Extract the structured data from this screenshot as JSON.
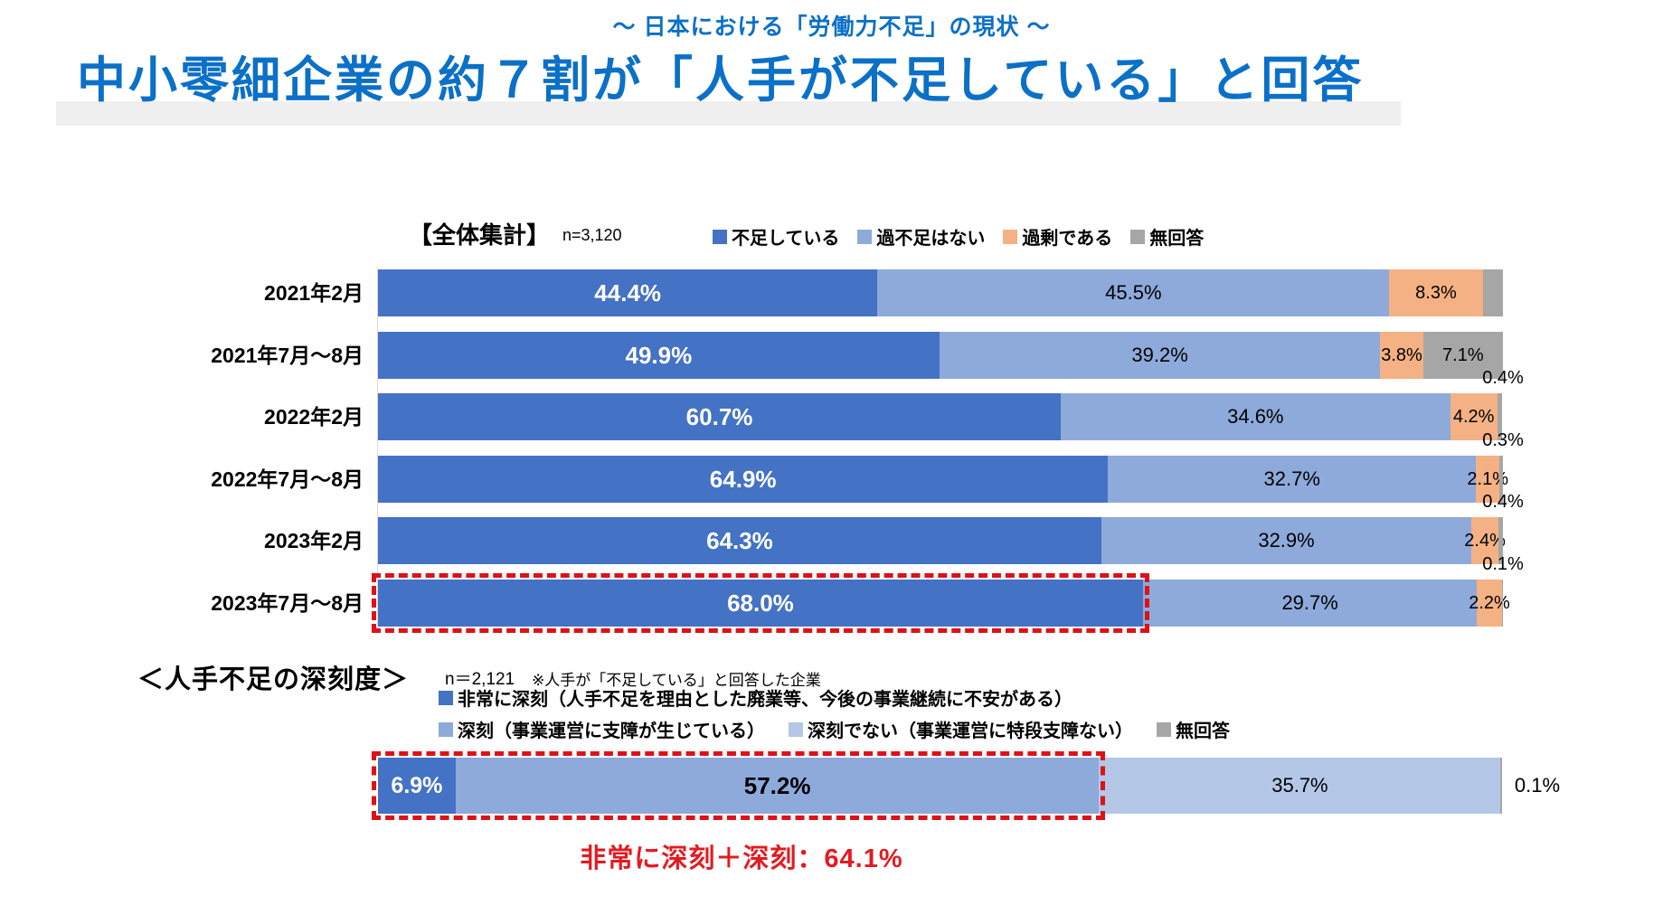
{
  "page": {
    "subtitle": "～ 日本における「労働力不足」の現状 ～",
    "title": "中小零細企業の約７割が「人手が不足している」と回答"
  },
  "colors": {
    "title_blue": "#0B70C7",
    "band_gray": "#EFEFEF",
    "dark_blue": "#4472C4",
    "light_blue": "#8EAADB",
    "pale_blue": "#B4C7E7",
    "orange": "#F4B183",
    "gray": "#A6A6A6",
    "highlight_red": "#DD1217",
    "annotation_red": "#E21B21"
  },
  "chart_data": [
    {
      "type": "bar",
      "orientation": "horizontal",
      "stacked": true,
      "unit": "%",
      "xlim": [
        0,
        100
      ],
      "title": "【全体集計】",
      "sample_label": "n=3,120",
      "legend_position": "top",
      "legend": [
        {
          "label": "不足している",
          "color": "#4472C4"
        },
        {
          "label": "過不足はない",
          "color": "#8EAADB"
        },
        {
          "label": "過剰である",
          "color": "#F4B183"
        },
        {
          "label": "無回答",
          "color": "#A6A6A6"
        }
      ],
      "categories": [
        "2021年2月",
        "2021年7月～8月",
        "2022年2月",
        "2022年7月～8月",
        "2023年2月",
        "2023年7月～8月"
      ],
      "series": [
        {
          "name": "不足している",
          "color": "#4472C4",
          "values": [
            44.4,
            49.9,
            60.7,
            64.9,
            64.3,
            68.0
          ],
          "value_labels": [
            "44.4%",
            "49.9%",
            "60.7%",
            "64.9%",
            "64.3%",
            "68.0%"
          ],
          "label_positions": [
            "inside",
            "inside",
            "inside",
            "inside",
            "inside",
            "inside"
          ]
        },
        {
          "name": "過不足はない",
          "color": "#8EAADB",
          "values": [
            45.5,
            39.2,
            34.6,
            32.7,
            32.9,
            29.7
          ],
          "value_labels": [
            "45.5%",
            "39.2%",
            "34.6%",
            "32.7%",
            "32.9%",
            "29.7%"
          ],
          "label_positions": [
            "inside",
            "inside",
            "inside",
            "inside",
            "inside",
            "inside"
          ]
        },
        {
          "name": "過剰である",
          "color": "#F4B183",
          "values": [
            8.3,
            3.8,
            4.2,
            2.1,
            2.4,
            2.2
          ],
          "value_labels": [
            "8.3%",
            "3.8%",
            "4.2%",
            "2.1%",
            "2.4%",
            "2.2%"
          ],
          "label_positions": [
            "inside",
            "inside",
            "inside",
            "inside",
            "inside",
            "inside"
          ]
        },
        {
          "name": "無回答",
          "color": "#A6A6A6",
          "values": [
            1.8,
            7.1,
            0.4,
            0.3,
            0.4,
            0.1
          ],
          "value_labels": [
            "",
            "7.1%",
            "0.4%",
            "0.3%",
            "0.4%",
            "0.1%"
          ],
          "label_positions": [
            "none",
            "inside",
            "above-right",
            "above-right",
            "above-right",
            "above-right"
          ]
        }
      ],
      "highlight": {
        "category": "2023年7月～8月",
        "series": "不足している",
        "style": "red-dashed-outline"
      }
    },
    {
      "type": "bar",
      "orientation": "horizontal",
      "stacked": true,
      "unit": "%",
      "xlim": [
        0,
        100
      ],
      "title": "＜人手不足の深刻度＞",
      "sample_label": "n＝2,121",
      "note": "※人手が「不足している」と回答した企業",
      "legend": [
        {
          "label": "非常に深刻（人手不足を理由とした廃業等、今後の事業継続に不安がある）",
          "color": "#4472C4"
        },
        {
          "label": "深刻（事業運営に支障が生じている）",
          "color": "#8EAADB"
        },
        {
          "label": "深刻でない（事業運営に特段支障ない）",
          "color": "#B4C7E7"
        },
        {
          "label": "無回答",
          "color": "#A6A6A6"
        }
      ],
      "categories": [
        ""
      ],
      "series": [
        {
          "name": "非常に深刻",
          "color": "#4472C4",
          "values": [
            6.9
          ],
          "value_labels": [
            "6.9%"
          ],
          "label_positions": [
            "inside"
          ]
        },
        {
          "name": "深刻",
          "color": "#8EAADB",
          "values": [
            57.2
          ],
          "value_labels": [
            "57.2%"
          ],
          "label_positions": [
            "inside"
          ]
        },
        {
          "name": "深刻でない",
          "color": "#B4C7E7",
          "values": [
            35.7
          ],
          "value_labels": [
            "35.7%"
          ],
          "label_positions": [
            "inside"
          ]
        },
        {
          "name": "無回答",
          "color": "#A6A6A6",
          "values": [
            0.1
          ],
          "value_labels": [
            "0.1%"
          ],
          "label_positions": [
            "outside-right"
          ]
        }
      ],
      "highlight": {
        "series": [
          "非常に深刻",
          "深刻"
        ],
        "combined_value": 64.1,
        "style": "red-dashed-outline"
      },
      "annotation": {
        "text": "非常に深刻＋深刻：64.1%",
        "color": "#E21B21"
      }
    }
  ]
}
